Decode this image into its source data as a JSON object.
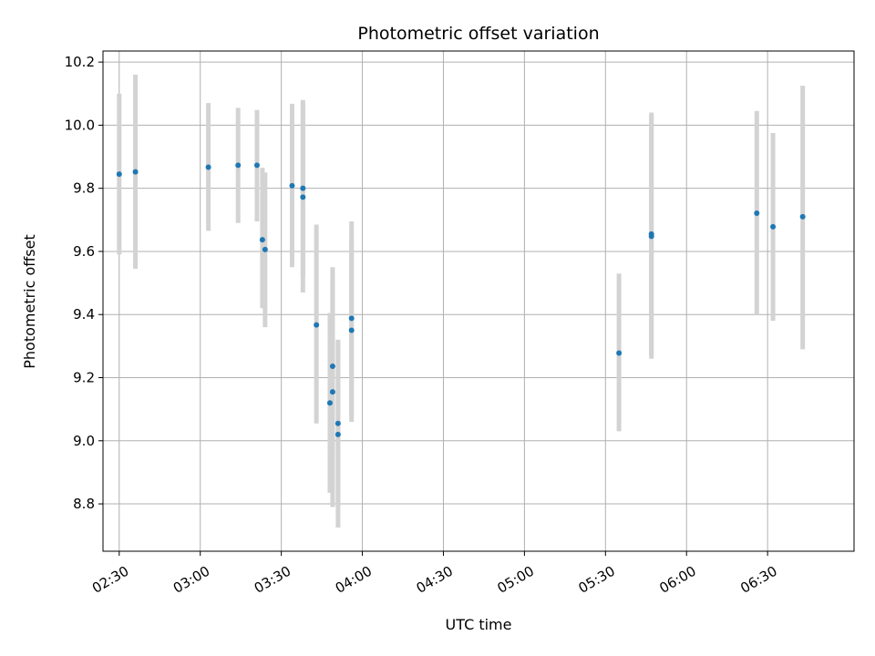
{
  "chart_data": {
    "type": "scatter",
    "title": "Photometric offset variation",
    "xlabel": "UTC time",
    "ylabel": "Photometric offset",
    "x_unit": "minutes since midnight UTC",
    "xlim": [
      "02:24",
      "07:02"
    ],
    "ylim": [
      8.65,
      10.235
    ],
    "x_ticks": [
      "02:30",
      "03:00",
      "03:30",
      "04:00",
      "04:30",
      "05:00",
      "05:30",
      "06:00",
      "06:30"
    ],
    "y_ticks": [
      "8.8",
      "9.0",
      "9.2",
      "9.4",
      "9.6",
      "9.8",
      "10.0",
      "10.2"
    ],
    "grid": true,
    "marker_color": "#1f77b4",
    "errorbar_color": "#d3d3d3",
    "points": [
      {
        "time": "02:30",
        "y": 9.845,
        "low": 9.59,
        "high": 10.1
      },
      {
        "time": "02:36",
        "y": 9.852,
        "low": 9.545,
        "high": 10.16
      },
      {
        "time": "03:03",
        "y": 9.867,
        "low": 9.665,
        "high": 10.07
      },
      {
        "time": "03:14",
        "y": 9.873,
        "low": 9.69,
        "high": 10.055
      },
      {
        "time": "03:21",
        "y": 9.873,
        "low": 9.695,
        "high": 10.048
      },
      {
        "time": "03:23",
        "y": 9.637,
        "low": 9.42,
        "high": 9.865
      },
      {
        "time": "03:24",
        "y": 9.606,
        "low": 9.36,
        "high": 9.85
      },
      {
        "time": "03:34",
        "y": 9.808,
        "low": 9.55,
        "high": 10.068
      },
      {
        "time": "03:38",
        "y": 9.8,
        "low": 9.52,
        "high": 10.08
      },
      {
        "time": "03:38",
        "y": 9.772,
        "low": 9.47,
        "high": 10.07
      },
      {
        "time": "03:43",
        "y": 9.367,
        "low": 9.055,
        "high": 9.685
      },
      {
        "time": "03:48",
        "y": 9.12,
        "low": 8.835,
        "high": 9.405
      },
      {
        "time": "03:49",
        "y": 9.236,
        "low": 8.96,
        "high": 9.55
      },
      {
        "time": "03:49",
        "y": 9.155,
        "low": 8.79,
        "high": 9.52
      },
      {
        "time": "03:51",
        "y": 9.055,
        "low": 8.79,
        "high": 9.32
      },
      {
        "time": "03:51",
        "y": 9.02,
        "low": 8.725,
        "high": 9.31
      },
      {
        "time": "03:56",
        "y": 9.388,
        "low": 9.08,
        "high": 9.695
      },
      {
        "time": "03:56",
        "y": 9.35,
        "low": 9.06,
        "high": 9.645
      },
      {
        "time": "05:35",
        "y": 9.278,
        "low": 9.03,
        "high": 9.53
      },
      {
        "time": "05:47",
        "y": 9.655,
        "low": 9.26,
        "high": 10.04
      },
      {
        "time": "05:47",
        "y": 9.648,
        "low": 9.27,
        "high": 10.03
      },
      {
        "time": "06:26",
        "y": 9.721,
        "low": 9.4,
        "high": 10.045
      },
      {
        "time": "06:32",
        "y": 9.678,
        "low": 9.38,
        "high": 9.975
      },
      {
        "time": "06:43",
        "y": 9.71,
        "low": 9.29,
        "high": 10.125
      }
    ]
  }
}
